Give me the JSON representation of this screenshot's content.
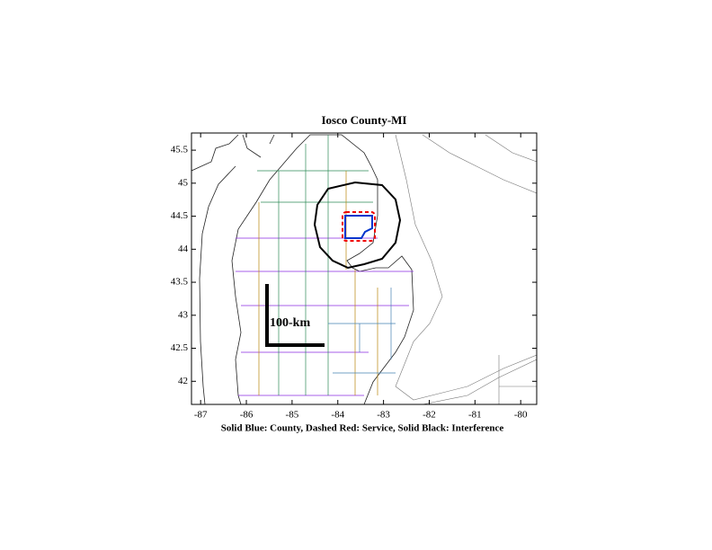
{
  "chart_data": {
    "type": "map",
    "title": "Iosco County-MI",
    "x_label": "Solid Blue: County, Dashed Red: Service, Solid Black: Interference",
    "scale_label": "100-km",
    "xlim": [
      -87.2,
      -79.65
    ],
    "xticks": [
      -87,
      -86,
      -85,
      -84,
      -83,
      -82,
      -81,
      -80
    ],
    "ylim": [
      41.65,
      45.76
    ],
    "yticks": [
      42,
      42.5,
      43,
      43.5,
      44,
      44.5,
      45,
      45.5
    ]
  }
}
